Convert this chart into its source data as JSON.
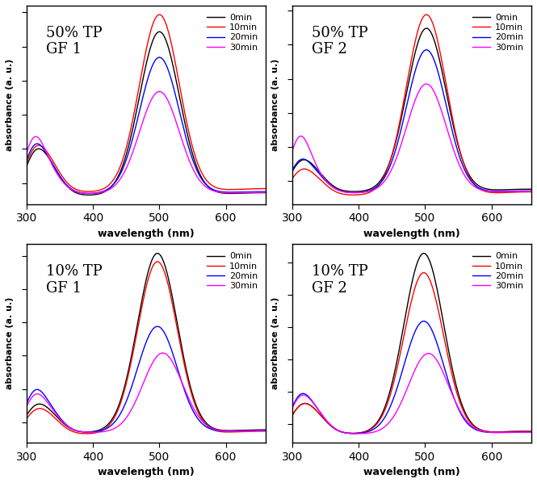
{
  "subplot_titles": [
    "50% TP\nGF 1",
    "50% TP\nGF 2",
    "10% TP\nGF 1",
    "10% TP\nGF 2"
  ],
  "legend_labels": [
    "0min",
    "10min",
    "20min",
    "30min"
  ],
  "line_colors": [
    "#000000",
    "#ff0000",
    "#0000ff",
    "#ff00ff"
  ],
  "xlabel": "wavelength (nm)",
  "ylabel": "absorbance (a. u.)",
  "xlim": [
    300,
    660
  ],
  "xticks": [
    300,
    400,
    500,
    600
  ],
  "background_color": "#ffffff",
  "figsize": [
    6.65,
    5.98
  ],
  "dpi": 100
}
